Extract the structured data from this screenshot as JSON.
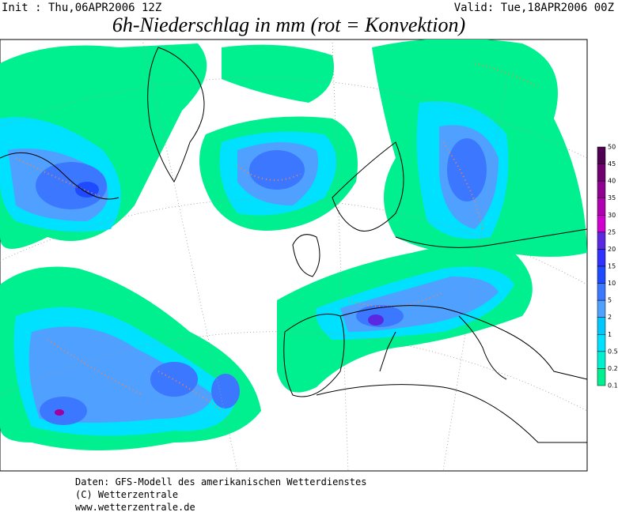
{
  "header": {
    "init": "Init : Thu,06APR2006 12Z",
    "valid": "Valid: Tue,18APR2006 00Z",
    "title": "6h-Niederschlag in mm (rot = Konvektion)"
  },
  "legend": {
    "labels": [
      "50",
      "45",
      "40",
      "35",
      "30",
      "25",
      "20",
      "15",
      "10",
      "5",
      "2",
      "1",
      "0.5",
      "0.2",
      "0.1"
    ]
  },
  "footer": {
    "lines": [
      "Daten: GFS-Modell des amerikanischen Wetterdienstes",
      "(C) Wetterzentrale",
      "www.wetterzentrale.de"
    ]
  }
}
